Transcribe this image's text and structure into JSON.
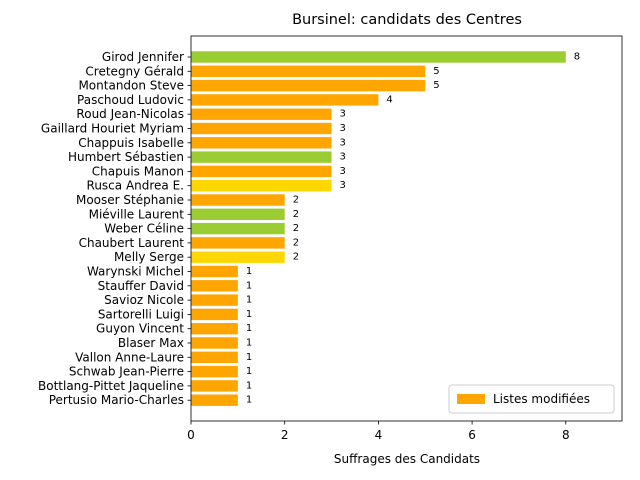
{
  "chart_data": {
    "type": "bar",
    "orientation": "horizontal",
    "title": "Bursinel: candidats des Centres",
    "xlabel": "Suffrages des Candidats",
    "ylabel": "",
    "xlim": [
      0,
      9.2
    ],
    "xticks": [
      0,
      2,
      4,
      6,
      8
    ],
    "grid": false,
    "legend_position": "lower-right",
    "legend": [
      {
        "label": "Listes modifiées",
        "color": "#ffa500"
      }
    ],
    "categories": [
      "Girod Jennifer",
      "Cretegny Gérald",
      "Montandon Steve",
      "Paschoud Ludovic",
      "Roud Jean-Nicolas",
      "Gaillard Houriet Myriam",
      "Chappuis Isabelle",
      "Humbert Sébastien",
      "Chapuis Manon",
      "Rusca Andrea E.",
      "Mooser Stéphanie",
      "Miéville Laurent",
      "Weber Céline",
      "Chaubert Laurent",
      "Melly Serge",
      "Warynski Michel",
      "Stauffer David",
      "Savioz Nicole",
      "Sartorelli Luigi",
      "Guyon Vincent",
      "Blaser Max",
      "Vallon Anne-Laure",
      "Schwab Jean-Pierre",
      "Bottlang-Pittet Jaqueline",
      "Pertusio Mario-Charles"
    ],
    "values": [
      8,
      5,
      5,
      4,
      3,
      3,
      3,
      3,
      3,
      3,
      2,
      2,
      2,
      2,
      2,
      1,
      1,
      1,
      1,
      1,
      1,
      1,
      1,
      1,
      1
    ],
    "colors": [
      "#9acd32",
      "#ffa500",
      "#ffa500",
      "#ffa500",
      "#ffa500",
      "#ffa500",
      "#ffa500",
      "#9acd32",
      "#ffa500",
      "#ffd700",
      "#ffa500",
      "#9acd32",
      "#9acd32",
      "#ffa500",
      "#ffd700",
      "#ffa500",
      "#ffa500",
      "#ffa500",
      "#ffa500",
      "#ffa500",
      "#ffa500",
      "#ffa500",
      "#ffa500",
      "#ffa500",
      "#ffa500"
    ]
  }
}
